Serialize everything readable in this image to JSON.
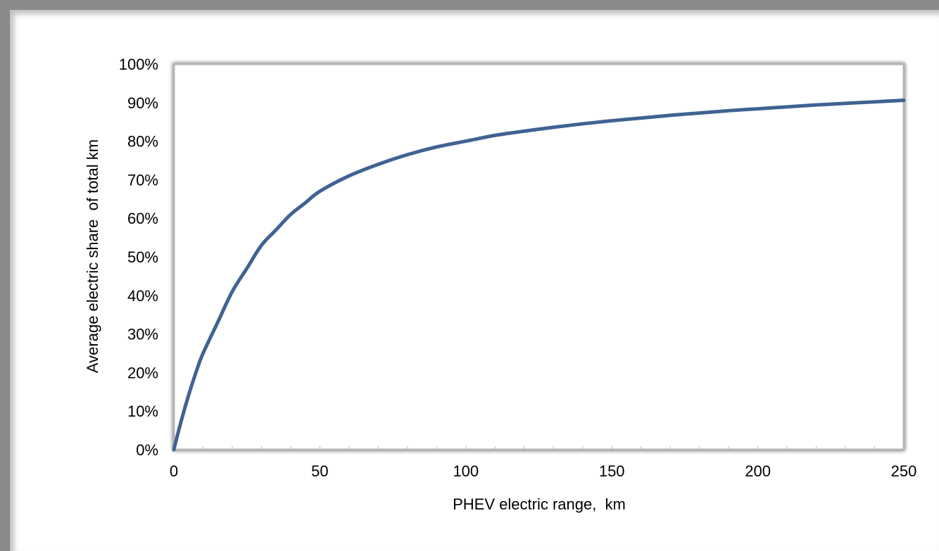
{
  "chart_data": {
    "type": "line",
    "title": "",
    "xlabel": "PHEV electric range,  km",
    "ylabel": "Average electric share  of total km",
    "xlim": [
      0,
      250
    ],
    "ylim": [
      0,
      1
    ],
    "x_ticks": [
      "0",
      "50",
      "100",
      "150",
      "200",
      "250"
    ],
    "y_ticks": [
      "0%",
      "10%",
      "20%",
      "30%",
      "40%",
      "50%",
      "60%",
      "70%",
      "80%",
      "90%",
      "100%"
    ],
    "grid": false,
    "legend": "none",
    "line_color": "#3f6392",
    "series": [
      {
        "x": [
          0,
          2,
          5,
          8,
          10,
          15,
          20,
          25,
          30,
          35,
          40,
          45,
          50,
          60,
          70,
          80,
          90,
          100,
          110,
          120,
          130,
          140,
          150,
          160,
          170,
          180,
          190,
          200,
          210,
          220,
          230,
          240,
          250
        ],
        "values": [
          0,
          0.06,
          0.14,
          0.21,
          0.25,
          0.33,
          0.41,
          0.47,
          0.53,
          0.57,
          0.61,
          0.64,
          0.67,
          0.71,
          0.74,
          0.765,
          0.785,
          0.8,
          0.815,
          0.826,
          0.836,
          0.845,
          0.853,
          0.86,
          0.867,
          0.873,
          0.879,
          0.884,
          0.889,
          0.894,
          0.898,
          0.902,
          0.906
        ]
      }
    ]
  }
}
